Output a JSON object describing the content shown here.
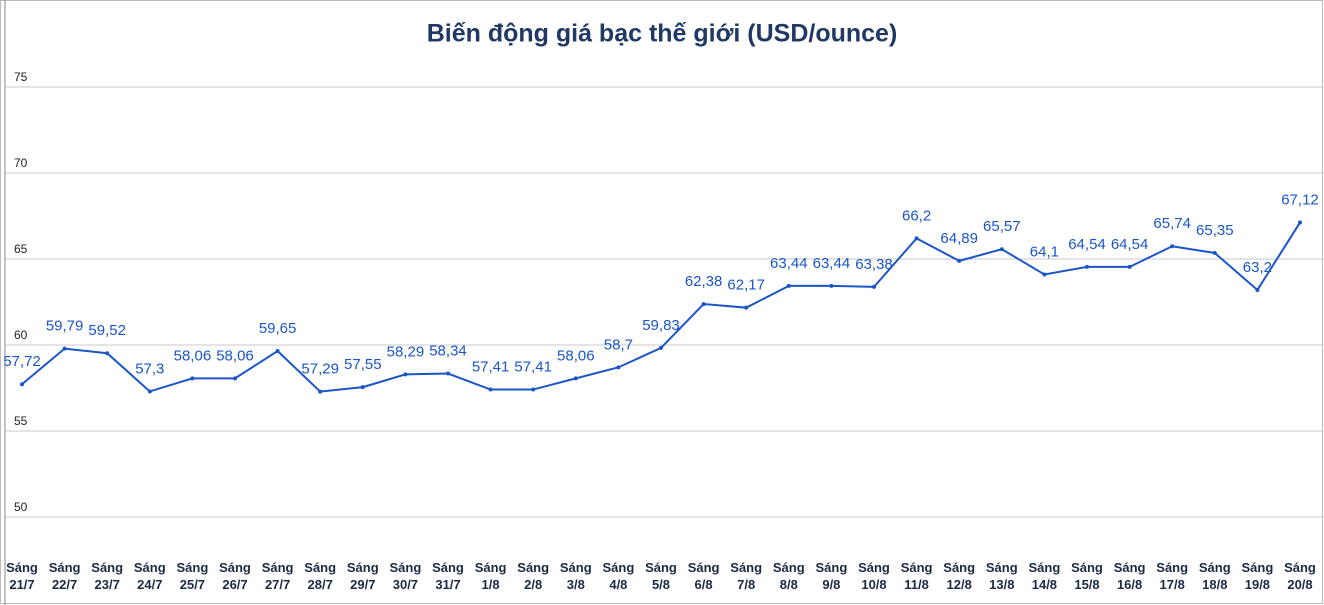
{
  "chart_data": {
    "type": "line",
    "title": "Biến động giá bạc thế giới (USD/ounce)",
    "categories": [
      "Sáng 21/7",
      "Sáng 22/7",
      "Sáng 23/7",
      "Sáng 24/7",
      "Sáng 25/7",
      "Sáng 26/7",
      "Sáng 27/7",
      "Sáng 28/7",
      "Sáng 29/7",
      "Sáng 30/7",
      "Sáng 31/7",
      "Sáng 1/8",
      "Sáng 2/8",
      "Sáng 3/8",
      "Sáng 4/8",
      "Sáng 5/8",
      "Sáng 6/8",
      "Sáng 7/8",
      "Sáng 8/8",
      "Sáng 9/8",
      "Sáng 10/8",
      "Sáng 11/8",
      "Sáng 12/8",
      "Sáng 13/8",
      "Sáng 14/8",
      "Sáng 15/8",
      "Sáng 16/8",
      "Sáng 17/8",
      "Sáng 18/8",
      "Sáng 19/8",
      "Sáng 20/8"
    ],
    "values": [
      57.72,
      59.79,
      59.52,
      57.3,
      58.06,
      58.06,
      59.65,
      57.29,
      57.55,
      58.29,
      58.34,
      57.41,
      57.41,
      58.06,
      58.7,
      59.83,
      62.38,
      62.17,
      63.44,
      63.44,
      63.38,
      66.2,
      64.89,
      65.57,
      64.1,
      64.54,
      64.54,
      65.74,
      65.35,
      63.2,
      67.12
    ],
    "value_labels": [
      "57,72",
      "59,79",
      "59,52",
      "57,3",
      "58,06",
      "58,06",
      "59,65",
      "57,29",
      "57,55",
      "58,29",
      "58,34",
      "57,41",
      "57,41",
      "58,06",
      "58,7",
      "59,83",
      "62,38",
      "62,17",
      "63,44",
      "63,44",
      "63,38",
      "66,2",
      "64,89",
      "65,57",
      "64,1",
      "64,54",
      "64,54",
      "65,74",
      "65,35",
      "63,2",
      "67,12"
    ],
    "color": "#1a56c8",
    "ylim": [
      50,
      80
    ],
    "yticks": [
      50,
      55,
      60,
      65,
      70,
      75
    ],
    "grid": true
  }
}
